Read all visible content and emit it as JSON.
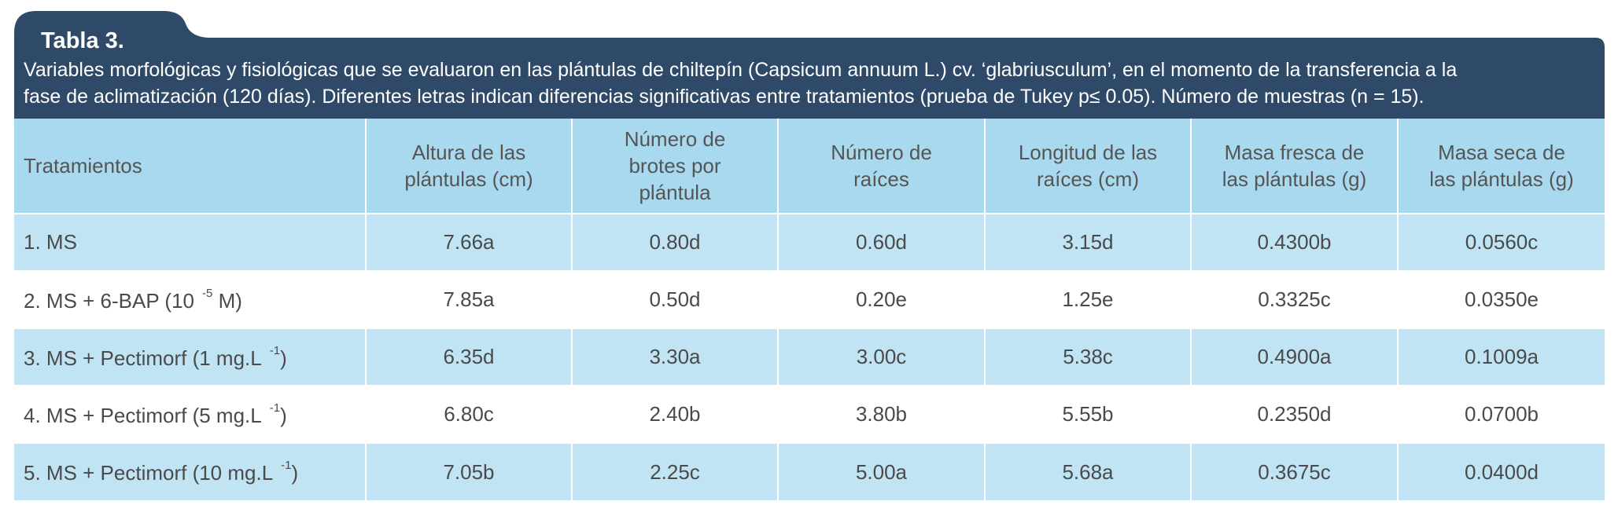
{
  "title": "Tabla 3.",
  "caption_line1": "Variables morfológicas y fisiológicas que se evaluaron en las plántulas de chiltepín (Capsicum annuum L.) cv. ‘glabriusculum’, en el momento de la transferencia a la",
  "caption_line2": "fase de aclimatización (120 días). Diferentes letras indican diferencias significativas entre tratamientos (prueba de Tukey  p≤ 0.05). Número de muestras (n = 15).",
  "colors": {
    "header_bg": "#2f4a68",
    "column_header_bg": "#a9d9ee",
    "row_alt_bg": "#c0e4f4"
  },
  "columns": [
    {
      "line1": "Tratamientos",
      "line2": "",
      "line3": ""
    },
    {
      "line1": "Altura de las",
      "line2": "plántulas (cm)",
      "line3": ""
    },
    {
      "line1": "Número de",
      "line2": "brotes por",
      "line3": "plántula"
    },
    {
      "line1": "Número de",
      "line2": "raíces",
      "line3": ""
    },
    {
      "line1": "Longitud de las",
      "line2": "raíces (cm)",
      "line3": ""
    },
    {
      "line1": "Masa fresca de",
      "line2": "las plántulas (g)",
      "line3": ""
    },
    {
      "line1": "Masa seca de",
      "line2": "las plántulas (g)",
      "line3": ""
    }
  ],
  "rows": [
    {
      "treatment": "1. MS",
      "sup": "",
      "tail": "",
      "values": [
        "7.66a",
        "0.80d",
        "0.60d",
        "3.15d",
        "0.4300b",
        "0.0560c"
      ]
    },
    {
      "treatment": "2. MS + 6-BAP (10",
      "sup": "-5",
      "tail": "M)",
      "values": [
        "7.85a",
        "0.50d",
        "0.20e",
        "1.25e",
        "0.3325c",
        "0.0350e"
      ]
    },
    {
      "treatment": "3. MS + Pectimorf (1 mg.L",
      "sup": "-1",
      "tail": ")",
      "values": [
        "6.35d",
        "3.30a",
        "3.00c",
        "5.38c",
        "0.4900a",
        "0.1009a"
      ]
    },
    {
      "treatment": "4. MS + Pectimorf (5 mg.L",
      "sup": "-1",
      "tail": ")",
      "values": [
        "6.80c",
        "2.40b",
        "3.80b",
        "5.55b",
        "0.2350d",
        "0.0700b"
      ]
    },
    {
      "treatment": "5. MS + Pectimorf (10 mg.L",
      "sup": "-1",
      "tail": ")",
      "values": [
        "7.05b",
        "2.25c",
        "5.00a",
        "5.68a",
        "0.3675c",
        "0.0400d"
      ]
    }
  ]
}
